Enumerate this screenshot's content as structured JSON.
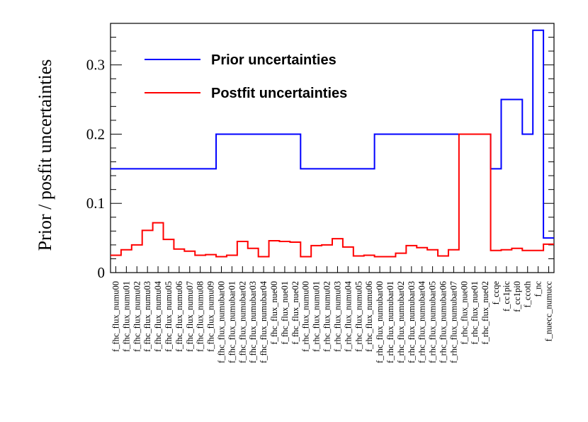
{
  "chart_data": {
    "type": "step",
    "ylabel": "Prior / posfit uncertainties",
    "ylim": [
      0,
      0.36
    ],
    "yticks": [
      {
        "value": 0,
        "label": "0"
      },
      {
        "value": 0.1,
        "label": "0.1"
      },
      {
        "value": 0.2,
        "label": "0.2"
      },
      {
        "value": 0.3,
        "label": "0.3"
      }
    ],
    "categories": [
      "f_fhc_flux_numu00",
      "f_fhc_flux_numu01",
      "f_fhc_flux_numu02",
      "f_fhc_flux_numu03",
      "f_fhc_flux_numu04",
      "f_fhc_flux_numu05",
      "f_fhc_flux_numu06",
      "f_fhc_flux_numu07",
      "f_fhc_flux_numu08",
      "f_fhc_flux_numu09",
      "f_fhc_flux_numubar00",
      "f_fhc_flux_numubar01",
      "f_fhc_flux_numubar02",
      "f_fhc_flux_numubar03",
      "f_fhc_flux_numubar04",
      "f_fhc_flux_nue00",
      "f_fhc_flux_nue01",
      "f_fhc_flux_nue02",
      "f_rhc_flux_numu00",
      "f_rhc_flux_numu01",
      "f_rhc_flux_numu02",
      "f_rhc_flux_numu03",
      "f_rhc_flux_numu04",
      "f_rhc_flux_numu05",
      "f_rhc_flux_numu06",
      "f_rhc_flux_numubar00",
      "f_rhc_flux_numubar01",
      "f_rhc_flux_numubar02",
      "f_rhc_flux_numubar03",
      "f_rhc_flux_numubar04",
      "f_rhc_flux_numubar05",
      "f_rhc_flux_numubar06",
      "f_rhc_flux_numubar07",
      "f_rhc_flux_nue00",
      "f_rhc_flux_nue01",
      "f_rhc_flux_nue02",
      "f_ccqe",
      "f_cc1pic",
      "f_cc1pi0",
      "f_ccoth",
      "f_nc",
      "f_nuecc_numucc"
    ],
    "series": [
      {
        "name": "Prior uncertainties",
        "color": "#0000ff",
        "values": [
          0.15,
          0.15,
          0.15,
          0.15,
          0.15,
          0.15,
          0.15,
          0.15,
          0.15,
          0.15,
          0.2,
          0.2,
          0.2,
          0.2,
          0.2,
          0.2,
          0.2,
          0.2,
          0.15,
          0.15,
          0.15,
          0.15,
          0.15,
          0.15,
          0.15,
          0.2,
          0.2,
          0.2,
          0.2,
          0.2,
          0.2,
          0.2,
          0.2,
          0.2,
          0.2,
          0.2,
          0.15,
          0.25,
          0.25,
          0.2,
          0.35,
          0.05
        ]
      },
      {
        "name": "Postfit uncertainties",
        "color": "#ff0000",
        "values": [
          0.025,
          0.033,
          0.04,
          0.061,
          0.072,
          0.048,
          0.034,
          0.031,
          0.025,
          0.026,
          0.023,
          0.025,
          0.045,
          0.035,
          0.023,
          0.046,
          0.045,
          0.044,
          0.023,
          0.039,
          0.04,
          0.049,
          0.037,
          0.024,
          0.025,
          0.023,
          0.023,
          0.028,
          0.039,
          0.036,
          0.033,
          0.024,
          0.033,
          0.2,
          0.2,
          0.2,
          0.032,
          0.033,
          0.035,
          0.032,
          0.032,
          0.041
        ]
      }
    ],
    "legend_position": "top-left"
  }
}
